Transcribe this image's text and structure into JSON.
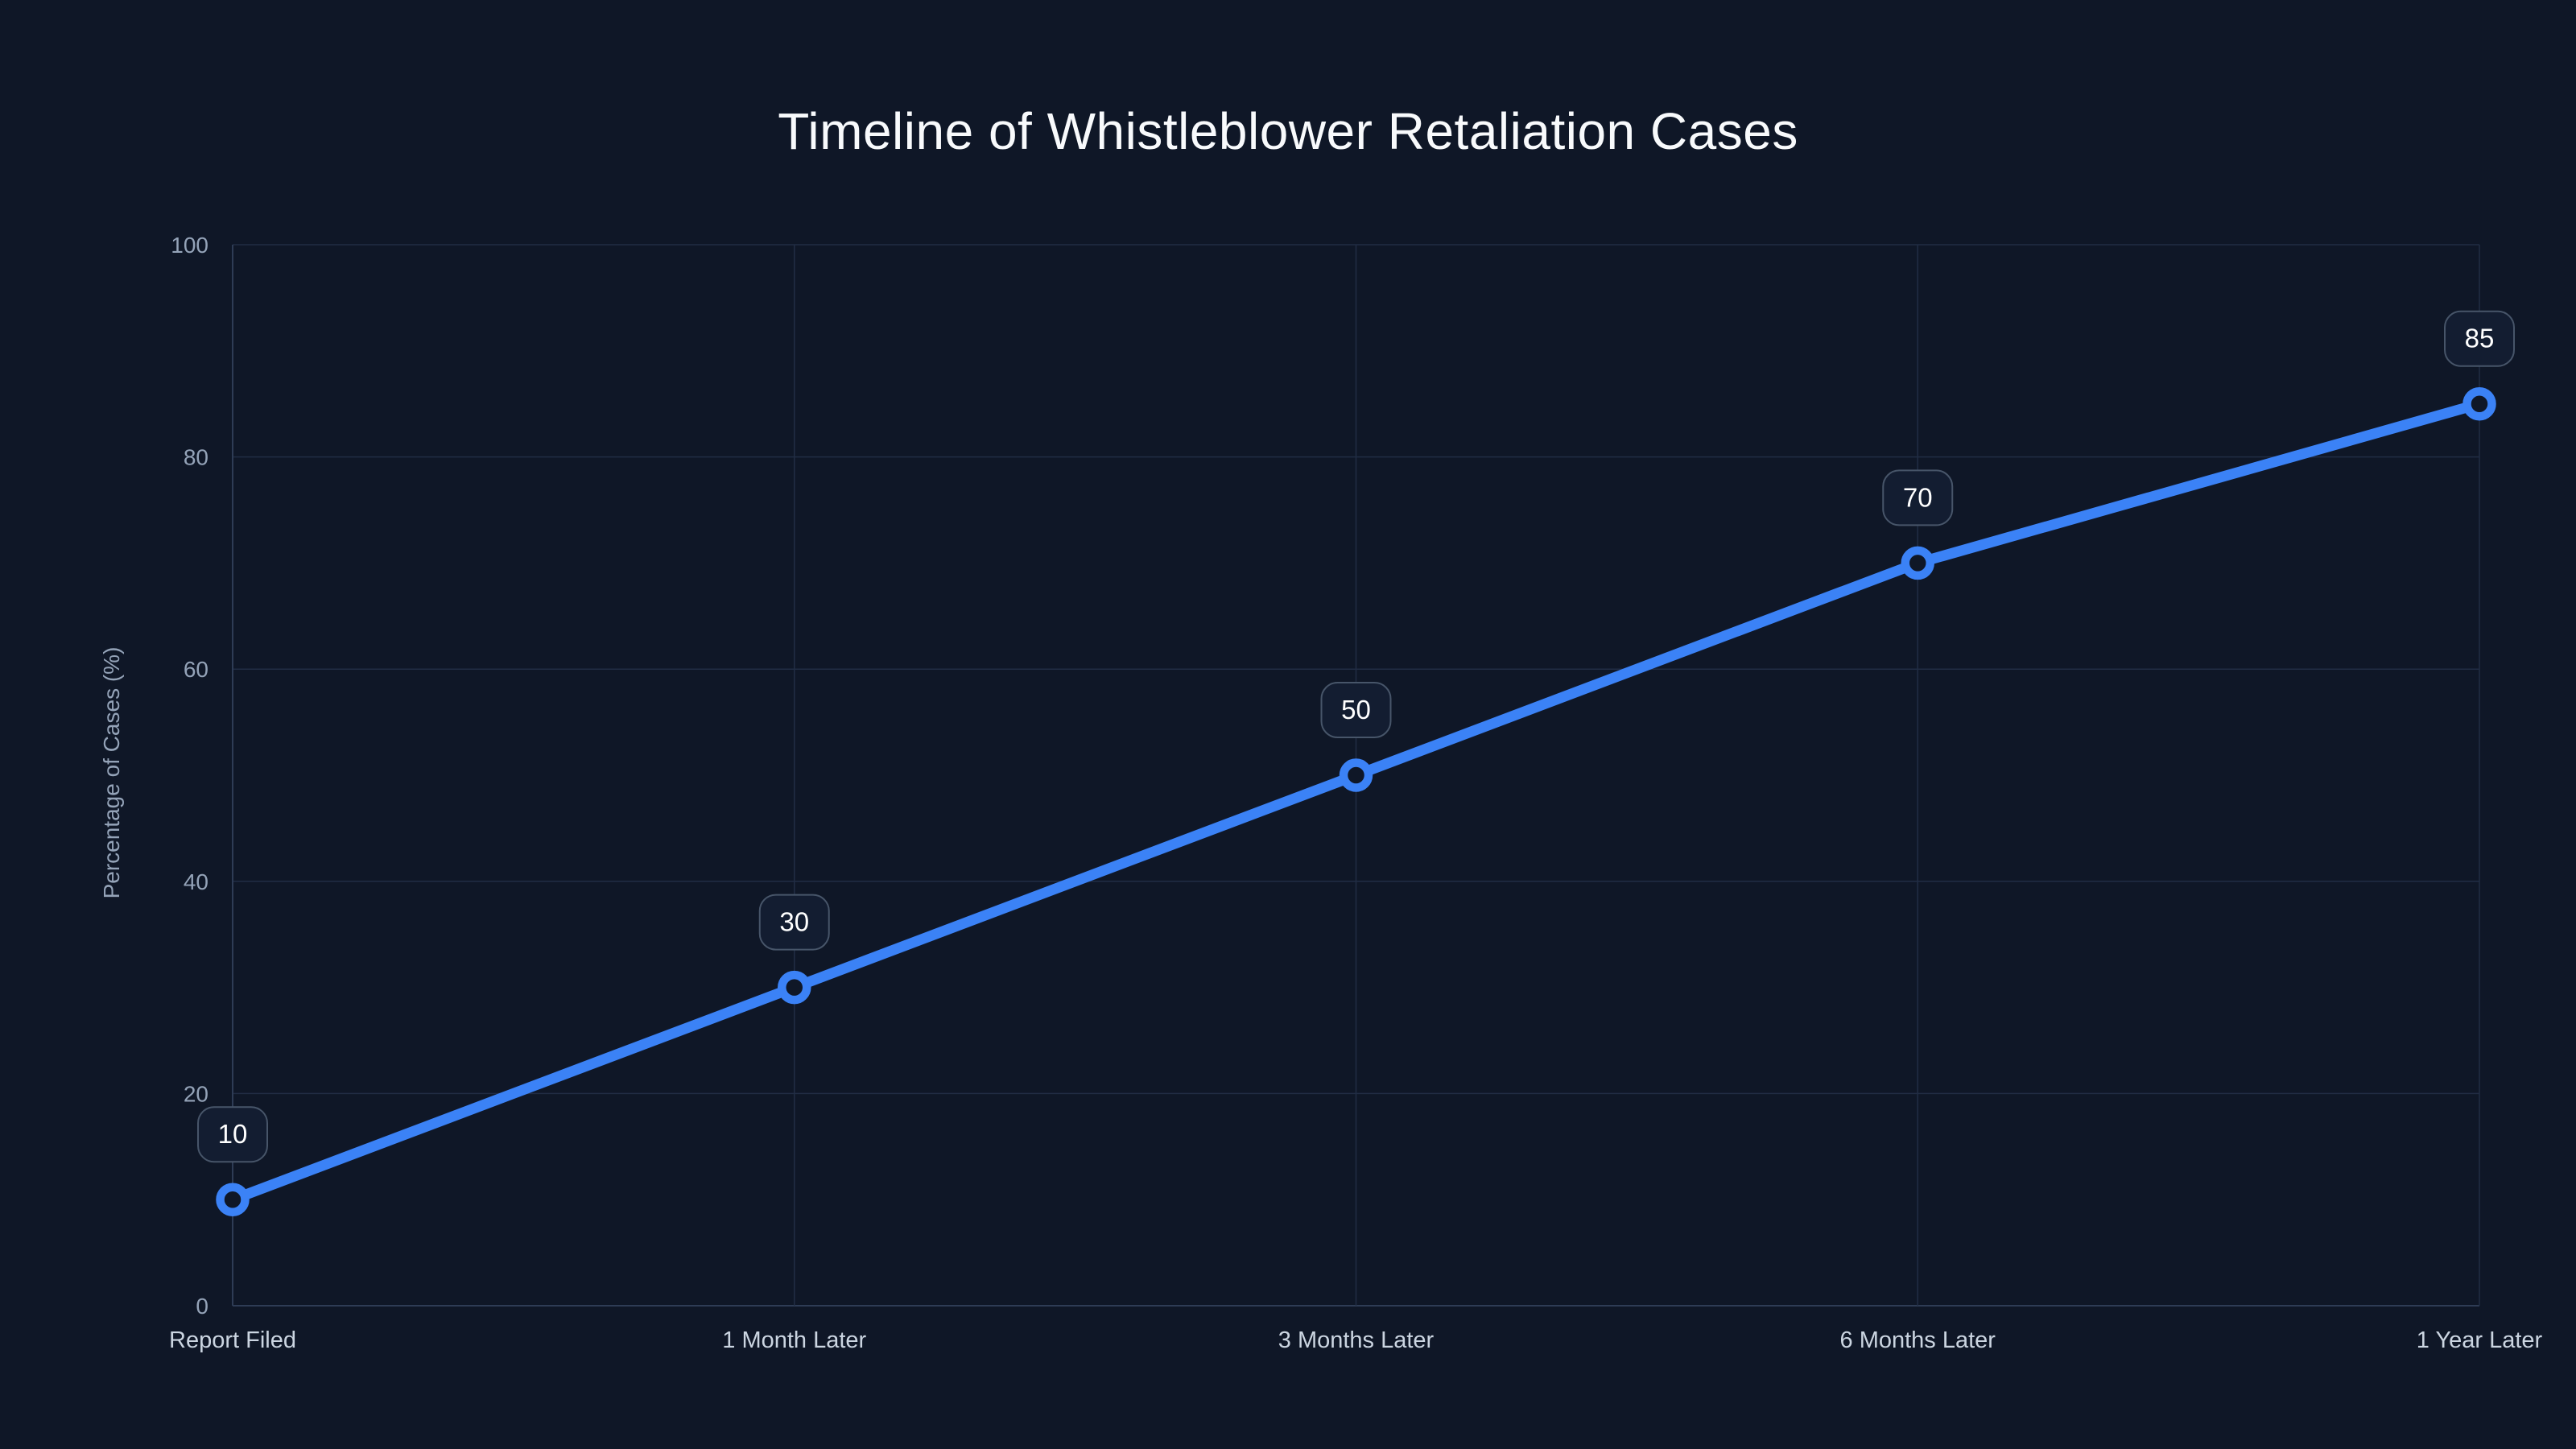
{
  "chart_data": {
    "type": "line",
    "title": "Timeline of Whistleblower Retaliation Cases",
    "categories": [
      "Report Filed",
      "1 Month Later",
      "3 Months Later",
      "6 Months Later",
      "1 Year Later"
    ],
    "series": [
      {
        "name": "Percentage of Cases",
        "values": [
          10,
          30,
          50,
          70,
          85
        ]
      }
    ],
    "point_labels": [
      "10",
      "30",
      "50",
      "70",
      "85"
    ],
    "xlabel": "",
    "ylabel": "Percentage of Cases (%)",
    "ylim": [
      0,
      100
    ],
    "yticks": [
      0,
      20,
      40,
      60,
      80,
      100
    ],
    "grid": true,
    "legend": "none"
  },
  "colors": {
    "background": "#0f1727",
    "line": "#3b82f6",
    "marker_fill": "#0f1727",
    "grid": "#212d44",
    "axis": "#2e3c55",
    "tick_text": "#94a3b8",
    "category_text": "#cbd5e1",
    "axis_title_text": "#94a3b8",
    "title_text": "#f8fafc",
    "label_text": "#ffffff",
    "label_box_fill": "#131d31",
    "label_box_border": "#475569"
  }
}
